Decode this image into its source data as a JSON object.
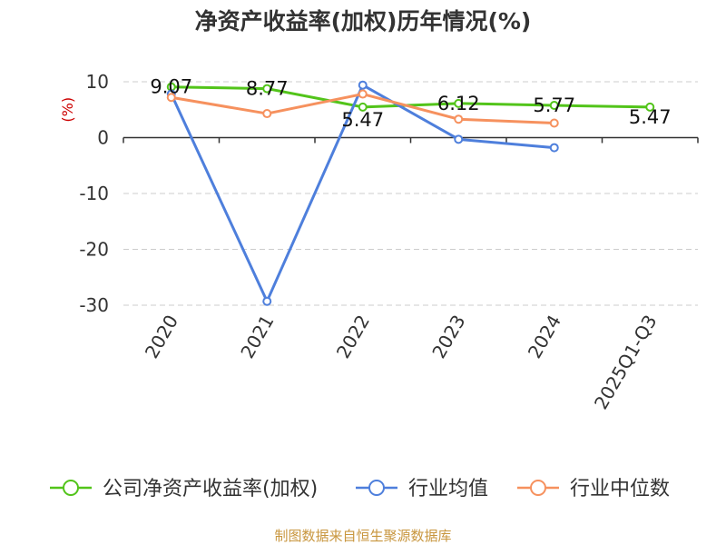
{
  "chart_data": {
    "type": "line",
    "title": "净资产收益率(加权)历年情况(%)",
    "ylabel": "(%)",
    "categories": [
      "2020",
      "2021",
      "2022",
      "2023",
      "2024",
      "2025Q1-Q3"
    ],
    "ylim": [
      -30,
      10
    ],
    "yticks": [
      10,
      0,
      -10,
      -20,
      -30
    ],
    "grid": true,
    "legend_position": "bottom",
    "series": [
      {
        "name": "公司净资产收益率(加权)",
        "color": "#52c41a",
        "values": [
          9.07,
          8.77,
          5.47,
          6.12,
          5.77,
          5.47
        ],
        "labels": [
          "9.07",
          "8.77",
          "5.47",
          "6.12",
          "5.77",
          "5.47"
        ]
      },
      {
        "name": "行业均值",
        "color": "#4e7fdc",
        "values": [
          7.8,
          -29.3,
          9.4,
          -0.3,
          -1.8,
          null
        ]
      },
      {
        "name": "行业中位数",
        "color": "#f6915e",
        "values": [
          7.2,
          4.3,
          7.8,
          3.3,
          2.6,
          null
        ]
      }
    ]
  },
  "source": "制图数据来自恒生聚源数据库"
}
